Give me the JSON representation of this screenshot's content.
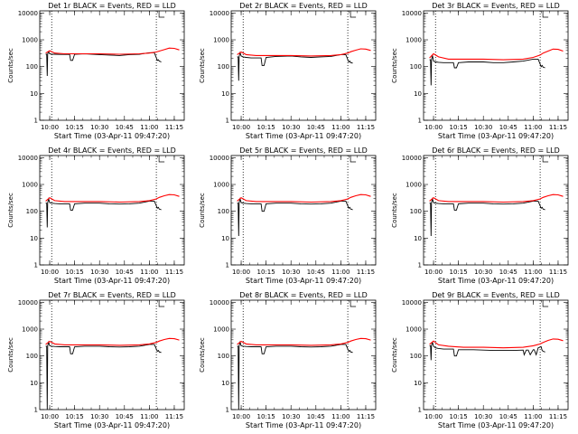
{
  "chart_data": {
    "type": "line",
    "layout": {
      "rows": 3,
      "cols": 3
    },
    "xlabel": "Start Time (03-Apr-11 09:47:20)",
    "ylabel": "Counts/sec",
    "xlim": [
      9.9,
      11.35
    ],
    "ylim": [
      1,
      12000
    ],
    "yscale": "log",
    "x_ticks": [
      10.0,
      10.25,
      10.5,
      10.75,
      11.0,
      11.25
    ],
    "x_tick_labels": [
      "10:00",
      "10:15",
      "10:30",
      "10:45",
      "11:00",
      "11:15"
    ],
    "y_ticks": [
      1,
      10,
      100,
      1000,
      10000
    ],
    "y_tick_labels": [
      "1",
      "10",
      "100",
      "1000",
      "10000"
    ],
    "vertical_markers": [
      10.02,
      11.07
    ],
    "series_colors": {
      "events": "#000000",
      "lld": "#ff0000"
    },
    "panels": [
      {
        "title": "Det 1r BLACK = Events, RED = LLD",
        "series": [
          {
            "name": "Events",
            "x": [
              9.96,
              9.97,
              9.975,
              9.98,
              9.99,
              10.0,
              10.02,
              10.05,
              10.1,
              10.2,
              10.21,
              10.22,
              10.23,
              10.25,
              10.35,
              10.5,
              10.6,
              10.7,
              10.8,
              10.9,
              11.0,
              11.05,
              11.08,
              11.09,
              11.1,
              11.12
            ],
            "y": [
              290,
              290,
              45,
              300,
              360,
              300,
              290,
              290,
              285,
              285,
              170,
              170,
              170,
              290,
              300,
              280,
              270,
              260,
              280,
              290,
              330,
              330,
              170,
              180,
              160,
              150
            ]
          },
          {
            "name": "LLD",
            "x": [
              9.96,
              10.0,
              10.05,
              10.15,
              10.3,
              10.5,
              10.7,
              10.9,
              11.0,
              11.07,
              11.1,
              11.15,
              11.2,
              11.25,
              11.3
            ],
            "y": [
              320,
              390,
              320,
              300,
              300,
              300,
              290,
              300,
              320,
              350,
              380,
              430,
              490,
              480,
              420
            ]
          }
        ]
      },
      {
        "title": "Det 2r BLACK = Events, RED = LLD",
        "series": [
          {
            "name": "Events",
            "x": [
              9.96,
              9.97,
              9.975,
              9.98,
              9.99,
              10.0,
              10.02,
              10.05,
              10.1,
              10.2,
              10.21,
              10.22,
              10.23,
              10.25,
              10.35,
              10.5,
              10.6,
              10.7,
              10.8,
              10.9,
              11.0,
              11.05,
              11.08,
              11.09,
              11.1,
              11.12
            ],
            "y": [
              230,
              230,
              30,
              240,
              330,
              250,
              230,
              220,
              210,
              210,
              110,
              110,
              110,
              220,
              240,
              250,
              230,
              220,
              230,
              240,
              280,
              280,
              150,
              160,
              140,
              135
            ]
          },
          {
            "name": "LLD",
            "x": [
              9.96,
              10.0,
              10.05,
              10.15,
              10.3,
              10.5,
              10.7,
              10.9,
              11.0,
              11.07,
              11.1,
              11.15,
              11.2,
              11.25,
              11.3
            ],
            "y": [
              280,
              350,
              280,
              260,
              260,
              260,
              250,
              260,
              280,
              320,
              360,
              410,
              460,
              450,
              400
            ]
          }
        ]
      },
      {
        "title": "Det 3r BLACK = Events, RED = LLD",
        "series": [
          {
            "name": "Events",
            "x": [
              9.96,
              9.97,
              9.975,
              9.98,
              9.99,
              10.0,
              10.02,
              10.05,
              10.1,
              10.2,
              10.21,
              10.22,
              10.23,
              10.25,
              10.35,
              10.5,
              10.6,
              10.7,
              10.8,
              10.9,
              11.0,
              11.05,
              11.08,
              11.09,
              11.1,
              11.12
            ],
            "y": [
              180,
              180,
              20,
              180,
              260,
              160,
              150,
              145,
              140,
              140,
              90,
              90,
              90,
              140,
              150,
              150,
              140,
              140,
              150,
              160,
              190,
              190,
              100,
              110,
              95,
              90
            ]
          },
          {
            "name": "LLD",
            "x": [
              9.96,
              10.0,
              10.05,
              10.15,
              10.3,
              10.5,
              10.7,
              10.9,
              11.0,
              11.07,
              11.1,
              11.15,
              11.2,
              11.25,
              11.3
            ],
            "y": [
              210,
              300,
              230,
              190,
              190,
              190,
              180,
              190,
              220,
              270,
              320,
              380,
              450,
              440,
              380
            ]
          }
        ]
      },
      {
        "title": "Det 4r BLACK = Events, RED = LLD",
        "series": [
          {
            "name": "Events",
            "x": [
              9.96,
              9.97,
              9.975,
              9.98,
              9.99,
              10.0,
              10.02,
              10.05,
              10.1,
              10.2,
              10.21,
              10.22,
              10.23,
              10.25,
              10.35,
              10.5,
              10.6,
              10.7,
              10.8,
              10.9,
              11.0,
              11.05,
              11.08,
              11.09,
              11.1,
              11.12
            ],
            "y": [
              200,
              200,
              25,
              210,
              290,
              210,
              200,
              195,
              190,
              190,
              110,
              110,
              110,
              190,
              200,
              200,
              190,
              185,
              190,
              200,
              240,
              240,
              130,
              140,
              120,
              115
            ]
          },
          {
            "name": "LLD",
            "x": [
              9.96,
              10.0,
              10.05,
              10.15,
              10.3,
              10.5,
              10.7,
              10.9,
              11.0,
              11.07,
              11.1,
              11.15,
              11.2,
              11.25,
              11.3
            ],
            "y": [
              240,
              320,
              250,
              230,
              230,
              230,
              220,
              230,
              250,
              290,
              330,
              380,
              420,
              410,
              360
            ]
          }
        ]
      },
      {
        "title": "Det 5r BLACK = Events, RED = LLD",
        "series": [
          {
            "name": "Events",
            "x": [
              9.96,
              9.97,
              9.975,
              9.98,
              9.99,
              10.0,
              10.02,
              10.05,
              10.1,
              10.2,
              10.21,
              10.22,
              10.23,
              10.25,
              10.35,
              10.5,
              10.6,
              10.7,
              10.8,
              10.9,
              11.0,
              11.05,
              11.08,
              11.09,
              11.1,
              11.12
            ],
            "y": [
              200,
              200,
              12,
              210,
              290,
              210,
              200,
              195,
              190,
              190,
              100,
              100,
              100,
              190,
              200,
              200,
              190,
              185,
              190,
              200,
              240,
              240,
              130,
              140,
              120,
              115
            ]
          },
          {
            "name": "LLD",
            "x": [
              9.96,
              10.0,
              10.05,
              10.15,
              10.3,
              10.5,
              10.7,
              10.9,
              11.0,
              11.07,
              11.1,
              11.15,
              11.2,
              11.25,
              11.3
            ],
            "y": [
              240,
              320,
              250,
              230,
              230,
              230,
              220,
              230,
              250,
              290,
              330,
              380,
              420,
              410,
              360
            ]
          }
        ]
      },
      {
        "title": "Det 6r BLACK = Events, RED = LLD",
        "series": [
          {
            "name": "Events",
            "x": [
              9.96,
              9.97,
              9.975,
              9.98,
              9.99,
              10.0,
              10.02,
              10.05,
              10.1,
              10.2,
              10.21,
              10.22,
              10.23,
              10.25,
              10.35,
              10.5,
              10.6,
              10.7,
              10.8,
              10.9,
              11.0,
              11.05,
              11.08,
              11.09,
              11.1,
              11.12
            ],
            "y": [
              200,
              200,
              12,
              210,
              290,
              210,
              200,
              195,
              190,
              190,
              110,
              110,
              110,
              190,
              200,
              200,
              190,
              185,
              190,
              200,
              240,
              240,
              130,
              140,
              120,
              115
            ]
          },
          {
            "name": "LLD",
            "x": [
              9.96,
              10.0,
              10.05,
              10.15,
              10.3,
              10.5,
              10.7,
              10.9,
              11.0,
              11.07,
              11.1,
              11.15,
              11.2,
              11.25,
              11.3
            ],
            "y": [
              240,
              320,
              250,
              230,
              230,
              230,
              220,
              230,
              250,
              290,
              330,
              380,
              420,
              410,
              360
            ]
          }
        ]
      },
      {
        "title": "Det 7r BLACK = Events, RED = LLD",
        "series": [
          {
            "name": "Events",
            "x": [
              9.96,
              9.97,
              9.975,
              9.98,
              9.99,
              10.0,
              10.02,
              10.05,
              10.1,
              10.2,
              10.21,
              10.22,
              10.23,
              10.25,
              10.35,
              10.5,
              10.6,
              10.7,
              10.8,
              10.9,
              11.0,
              11.05,
              11.08,
              11.09,
              11.1,
              11.12
            ],
            "y": [
              230,
              230,
              1,
              240,
              330,
              240,
              230,
              225,
              220,
              220,
              120,
              120,
              120,
              220,
              230,
              230,
              220,
              215,
              220,
              230,
              270,
              270,
              150,
              160,
              140,
              135
            ]
          },
          {
            "name": "LLD",
            "x": [
              9.96,
              10.0,
              10.05,
              10.15,
              10.3,
              10.5,
              10.7,
              10.9,
              11.0,
              11.07,
              11.1,
              11.15,
              11.2,
              11.25,
              11.3
            ],
            "y": [
              270,
              350,
              280,
              260,
              260,
              260,
              250,
              260,
              280,
              320,
              360,
              410,
              450,
              440,
              390
            ]
          }
        ]
      },
      {
        "title": "Det 8r BLACK = Events, RED = LLD",
        "series": [
          {
            "name": "Events",
            "x": [
              9.96,
              9.97,
              9.975,
              9.98,
              9.99,
              10.0,
              10.02,
              10.05,
              10.1,
              10.2,
              10.21,
              10.22,
              10.23,
              10.25,
              10.35,
              10.5,
              10.6,
              10.7,
              10.8,
              10.9,
              11.0,
              11.05,
              11.08,
              11.09,
              11.1,
              11.12
            ],
            "y": [
              230,
              230,
              1,
              240,
              330,
              240,
              230,
              225,
              220,
              220,
              120,
              120,
              120,
              220,
              230,
              230,
              220,
              215,
              220,
              230,
              270,
              270,
              150,
              160,
              140,
              135
            ]
          },
          {
            "name": "LLD",
            "x": [
              9.96,
              10.0,
              10.05,
              10.15,
              10.3,
              10.5,
              10.7,
              10.9,
              11.0,
              11.07,
              11.1,
              11.15,
              11.2,
              11.25,
              11.3
            ],
            "y": [
              270,
              350,
              280,
              260,
              260,
              260,
              250,
              260,
              280,
              320,
              360,
              410,
              450,
              440,
              390
            ]
          }
        ]
      },
      {
        "title": "Det 9r BLACK = Events, RED = LLD",
        "series": [
          {
            "name": "Events",
            "x": [
              9.96,
              9.97,
              9.975,
              9.98,
              9.99,
              10.0,
              10.02,
              10.05,
              10.1,
              10.2,
              10.21,
              10.22,
              10.23,
              10.25,
              10.4,
              10.6,
              10.8,
              10.9,
              10.91,
              10.93,
              10.95,
              10.97,
              11.0,
              11.01,
              11.03,
              11.05,
              11.08,
              11.09,
              11.1,
              11.12
            ],
            "y": [
              240,
              240,
              70,
              250,
              320,
              230,
              200,
              190,
              180,
              180,
              100,
              100,
              100,
              170,
              170,
              160,
              160,
              165,
              110,
              165,
              165,
              110,
              170,
              170,
              110,
              200,
              220,
              160,
              150,
              140
            ]
          },
          {
            "name": "LLD",
            "x": [
              9.96,
              10.0,
              10.05,
              10.15,
              10.3,
              10.5,
              10.7,
              10.9,
              11.0,
              11.07,
              11.1,
              11.15,
              11.2,
              11.25,
              11.3
            ],
            "y": [
              270,
              360,
              260,
              230,
              210,
              210,
              200,
              210,
              240,
              280,
              320,
              380,
              430,
              420,
              370
            ]
          }
        ]
      }
    ]
  }
}
